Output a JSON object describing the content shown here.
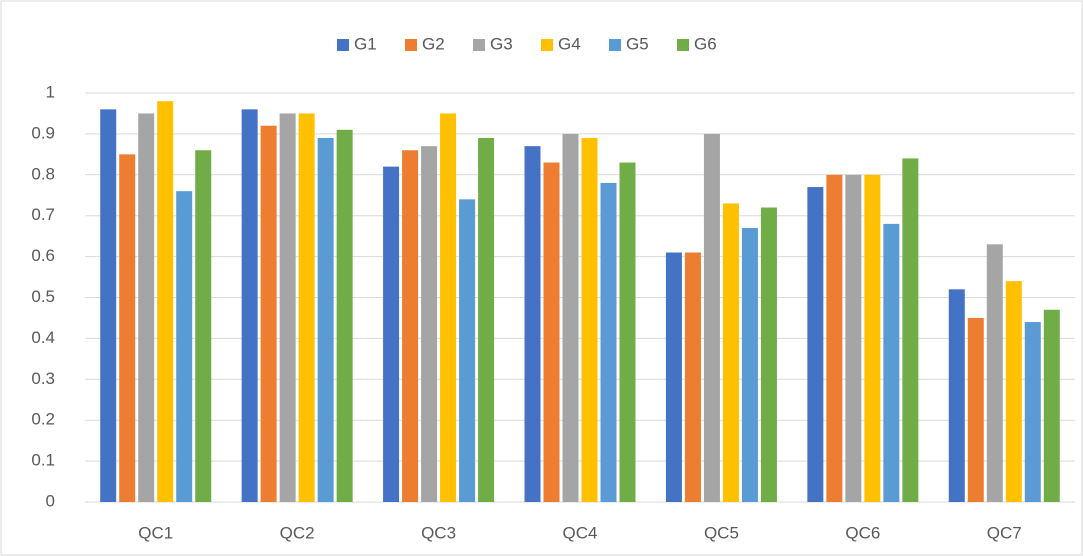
{
  "chart_data": {
    "type": "bar",
    "categories": [
      "QC1",
      "QC2",
      "QC3",
      "QC4",
      "QC5",
      "QC6",
      "QC7"
    ],
    "series": [
      {
        "name": "G1",
        "color": "#4472c4",
        "values": [
          0.96,
          0.96,
          0.82,
          0.87,
          0.61,
          0.77,
          0.52
        ]
      },
      {
        "name": "G2",
        "color": "#ed7d31",
        "values": [
          0.85,
          0.92,
          0.86,
          0.83,
          0.61,
          0.8,
          0.45
        ]
      },
      {
        "name": "G3",
        "color": "#a5a5a5",
        "values": [
          0.95,
          0.95,
          0.87,
          0.9,
          0.9,
          0.8,
          0.63
        ]
      },
      {
        "name": "G4",
        "color": "#ffc000",
        "values": [
          0.98,
          0.95,
          0.95,
          0.89,
          0.73,
          0.8,
          0.54
        ]
      },
      {
        "name": "G5",
        "color": "#5b9bd5",
        "values": [
          0.76,
          0.89,
          0.74,
          0.78,
          0.67,
          0.68,
          0.44
        ]
      },
      {
        "name": "G6",
        "color": "#70ad47",
        "values": [
          0.86,
          0.91,
          0.89,
          0.83,
          0.72,
          0.84,
          0.47
        ]
      }
    ],
    "ylim": [
      0,
      1
    ],
    "yticks": [
      0,
      0.1,
      0.2,
      0.3,
      0.4,
      0.5,
      0.6,
      0.7,
      0.8,
      0.9,
      1
    ],
    "grid": true,
    "legend": "top"
  }
}
